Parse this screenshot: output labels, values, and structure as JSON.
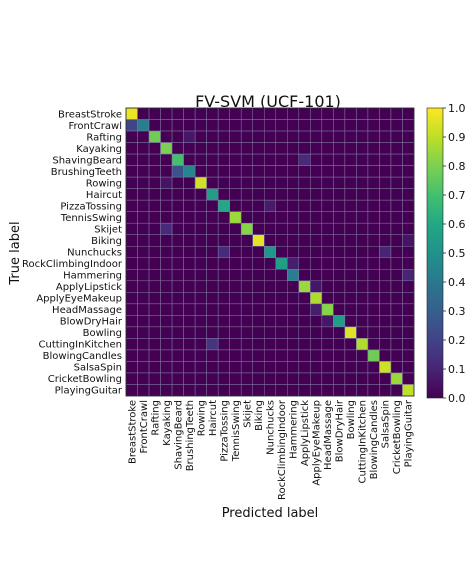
{
  "chart_data": {
    "type": "heatmap",
    "title": "FV-SVM (UCF-101)",
    "xlabel": "Predicted label",
    "ylabel": "True label",
    "labels": [
      "BreastStroke",
      "FrontCrawl",
      "Rafting",
      "Kayaking",
      "ShavingBeard",
      "BrushingTeeth",
      "Rowing",
      "Haircut",
      "PizzaTossing",
      "TennisSwing",
      "Skijet",
      "Biking",
      "Nunchucks",
      "RockClimbingIndoor",
      "Hammering",
      "ApplyLipstick",
      "ApplyEyeMakeup",
      "HeadMassage",
      "BlowDryHair",
      "Bowling",
      "CuttingInKitchen",
      "BlowingCandles",
      "SalsaSpin",
      "CricketBowling",
      "PlayingGuitar"
    ],
    "diagonal": [
      0.97,
      0.42,
      0.78,
      0.8,
      0.7,
      0.45,
      0.93,
      0.55,
      0.6,
      0.85,
      0.82,
      0.96,
      0.52,
      0.55,
      0.42,
      0.85,
      0.88,
      0.82,
      0.55,
      0.95,
      0.88,
      0.78,
      0.92,
      0.85,
      0.9
    ],
    "off_diagonal": [
      {
        "row": 1,
        "col": 0,
        "value": 0.2
      },
      {
        "row": 4,
        "col": 15,
        "value": 0.12
      },
      {
        "row": 5,
        "col": 4,
        "value": 0.25
      },
      {
        "row": 10,
        "col": 3,
        "value": 0.12
      },
      {
        "row": 12,
        "col": 8,
        "value": 0.12
      },
      {
        "row": 12,
        "col": 22,
        "value": 0.1
      },
      {
        "row": 14,
        "col": 24,
        "value": 0.1
      },
      {
        "row": 20,
        "col": 7,
        "value": 0.15
      },
      {
        "row": 13,
        "col": 14,
        "value": 0.08
      },
      {
        "row": 17,
        "col": 16,
        "value": 0.08
      },
      {
        "row": 2,
        "col": 5,
        "value": 0.06
      },
      {
        "row": 8,
        "col": 12,
        "value": 0.07
      },
      {
        "row": 15,
        "col": 16,
        "value": 0.06
      },
      {
        "row": 18,
        "col": 17,
        "value": 0.06
      },
      {
        "row": 6,
        "col": 3,
        "value": 0.05
      },
      {
        "row": 11,
        "col": 24,
        "value": 0.05
      }
    ],
    "background_value": 0.0,
    "colorbar": {
      "min": 0.0,
      "max": 1.0,
      "ticks": [
        "0.0",
        "0.1",
        "0.2",
        "0.3",
        "0.4",
        "0.5",
        "0.6",
        "0.7",
        "0.8",
        "0.9",
        "1.0"
      ]
    },
    "colormap": "viridis",
    "grid": true
  }
}
